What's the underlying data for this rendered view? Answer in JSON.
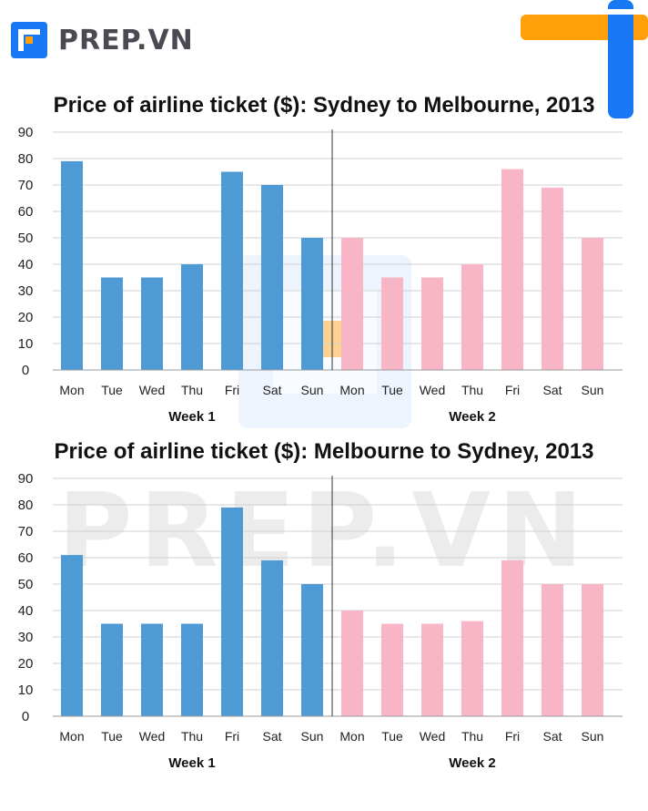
{
  "brand": {
    "name": "PREP.VN",
    "watermark": "PREP.VN"
  },
  "colors": {
    "week1": "#4d9ad4",
    "week2": "#f7b5c6",
    "brand_blue": "#1877f2",
    "brand_orange": "#ff9f0a"
  },
  "chart_data": [
    {
      "type": "bar",
      "title": "Price of airline ticket ($): Sydney to Melbourne, 2013",
      "ylim": [
        0,
        90
      ],
      "yticks": [
        0,
        10,
        20,
        30,
        40,
        50,
        60,
        70,
        80,
        90
      ],
      "grid": true,
      "groups": [
        {
          "name": "Week 1",
          "categories": [
            "Mon",
            "Tue",
            "Wed",
            "Thu",
            "Fri",
            "Sat",
            "Sun"
          ],
          "values": [
            79,
            35,
            35,
            40,
            75,
            70,
            50
          ]
        },
        {
          "name": "Week 2",
          "categories": [
            "Mon",
            "Tue",
            "Wed",
            "Thu",
            "Fri",
            "Sat",
            "Sun"
          ],
          "values": [
            50,
            35,
            35,
            40,
            76,
            69,
            50
          ]
        }
      ]
    },
    {
      "type": "bar",
      "title": "Price of airline ticket ($): Melbourne to Sydney, 2013",
      "ylim": [
        0,
        90
      ],
      "yticks": [
        0,
        10,
        20,
        30,
        40,
        50,
        60,
        70,
        80,
        90
      ],
      "grid": true,
      "groups": [
        {
          "name": "Week 1",
          "categories": [
            "Mon",
            "Tue",
            "Wed",
            "Thu",
            "Fri",
            "Sat",
            "Sun"
          ],
          "values": [
            61,
            35,
            35,
            35,
            79,
            59,
            50
          ]
        },
        {
          "name": "Week 2",
          "categories": [
            "Mon",
            "Tue",
            "Wed",
            "Thu",
            "Fri",
            "Sat",
            "Sun"
          ],
          "values": [
            40,
            35,
            35,
            36,
            59,
            50,
            50
          ]
        }
      ]
    }
  ]
}
